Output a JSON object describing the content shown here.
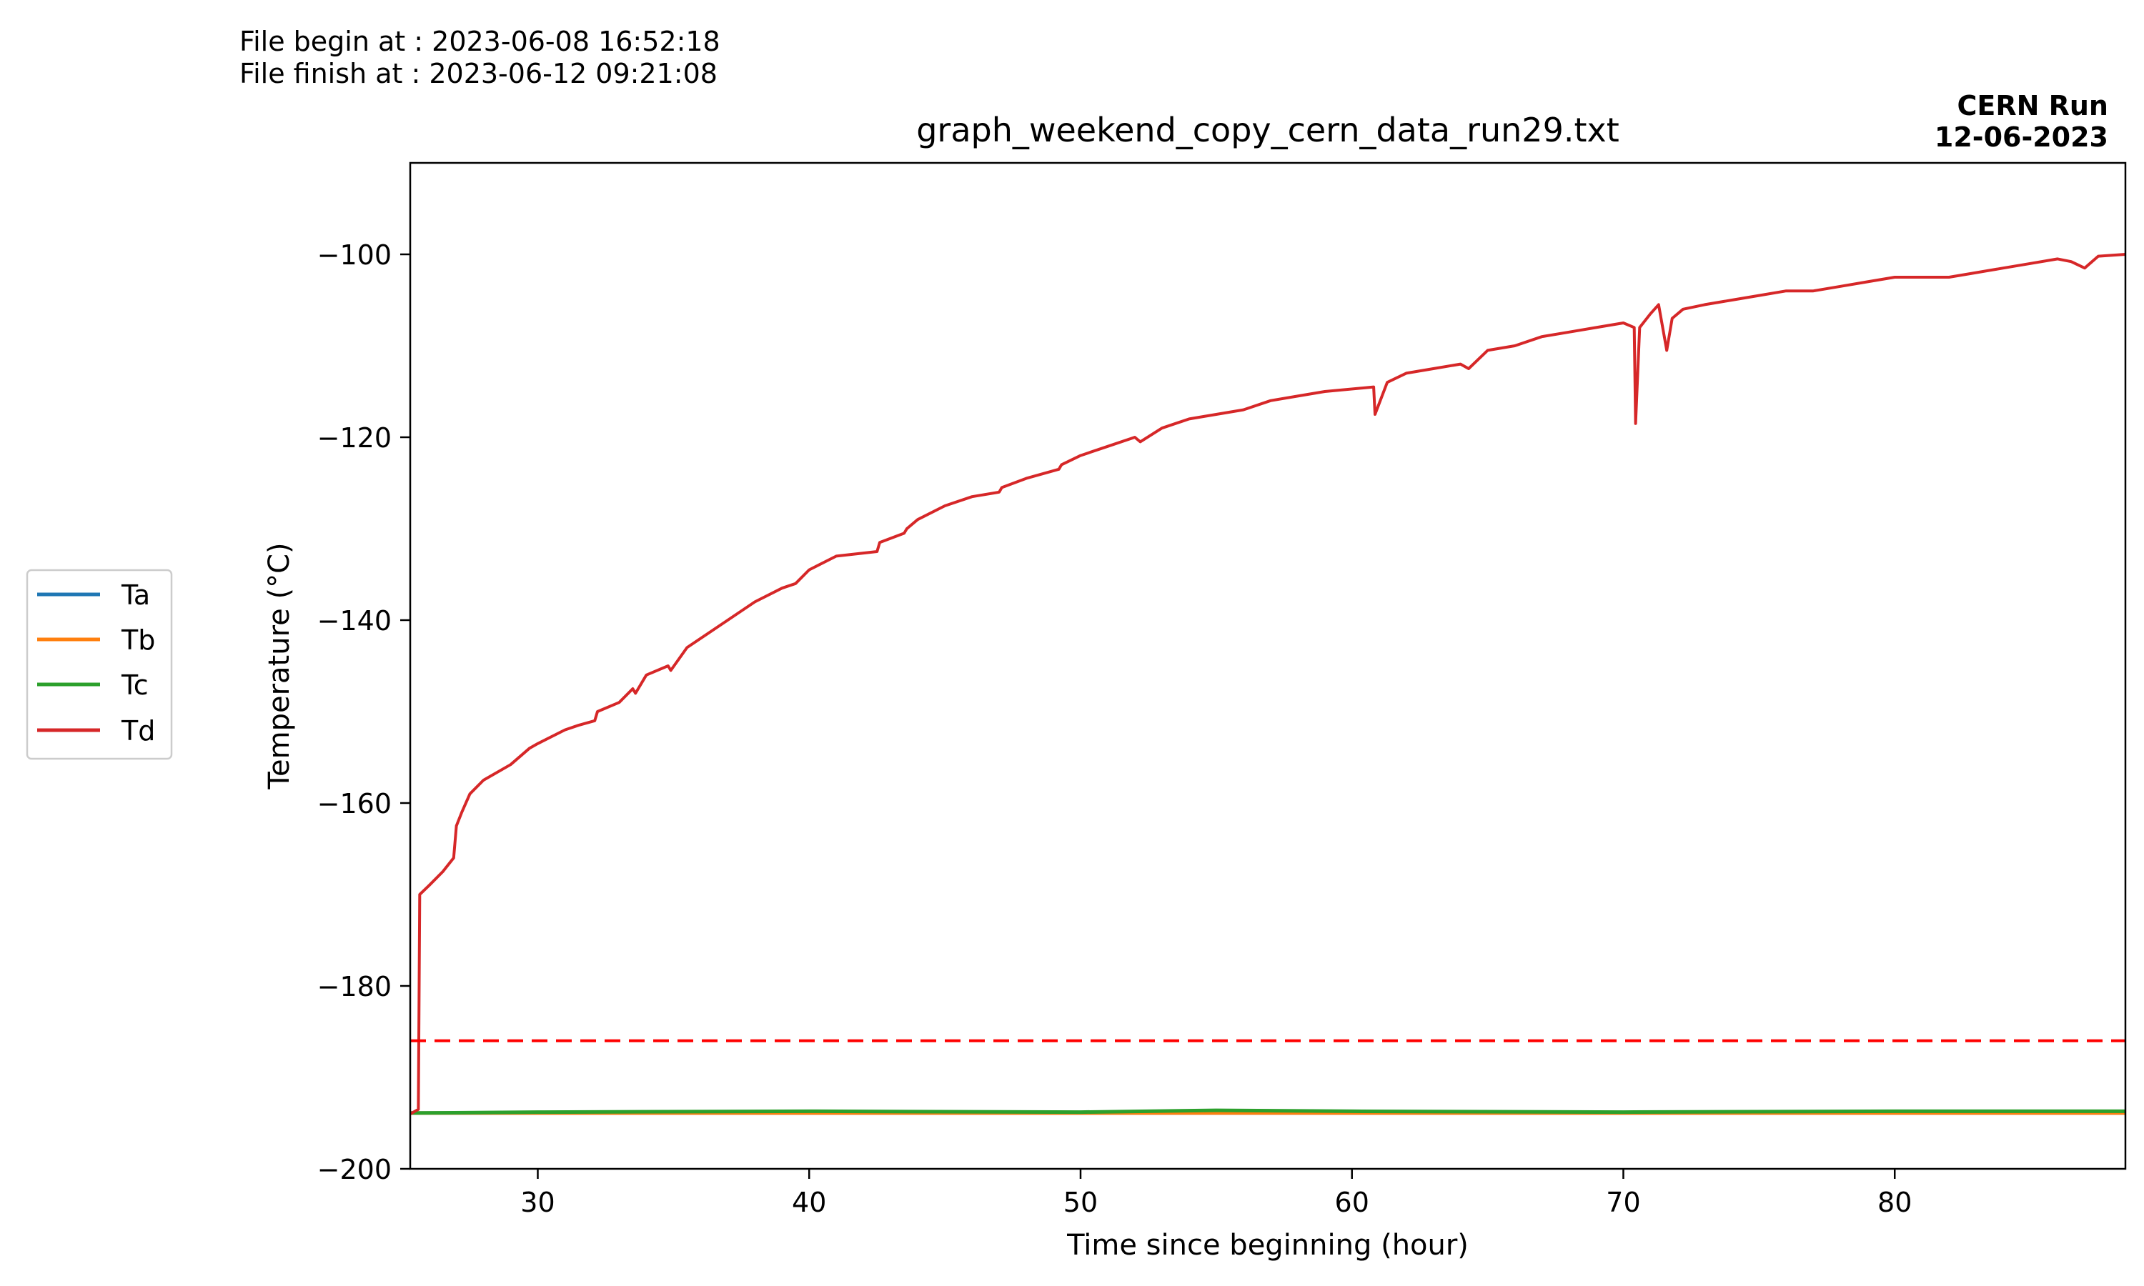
{
  "header": {
    "begin": "File begin at : 2023-06-08 16:52:18",
    "finish": "File finish at : 2023-06-12 09:21:08"
  },
  "stamp": {
    "line1": "CERN Run",
    "line2": "12-06-2023"
  },
  "colors": {
    "Ta": "#1f77b4",
    "Tb": "#ff7f0e",
    "Tc": "#2ca02c",
    "Td": "#d62728",
    "threshold": "#ff0000"
  },
  "chart_data": {
    "type": "line",
    "title": "graph_weekend_copy_cern_data_run29.txt",
    "xlabel": "Time since beginning (hour)",
    "ylabel": "Temperature (°C)",
    "xlim": [
      25.3,
      88.5
    ],
    "ylim": [
      -200,
      -90
    ],
    "xticks": [
      30,
      40,
      50,
      60,
      70,
      80
    ],
    "yticks": [
      -200,
      -180,
      -160,
      -140,
      -120,
      -100
    ],
    "legend": {
      "placement": "left-outside",
      "entries": [
        "Ta",
        "Tb",
        "Tc",
        "Td"
      ]
    },
    "threshold": {
      "y": -186,
      "style": "dashed"
    },
    "series": [
      {
        "name": "Ta",
        "x": [
          25.3,
          88.5
        ],
        "y": [
          -193.9,
          -193.9
        ]
      },
      {
        "name": "Tb",
        "x": [
          25.3,
          88.5
        ],
        "y": [
          -193.9,
          -193.9
        ]
      },
      {
        "name": "Tc",
        "x": [
          25.3,
          30,
          40,
          50,
          55,
          60,
          70,
          80,
          88.5
        ],
        "y": [
          -193.9,
          -193.8,
          -193.7,
          -193.8,
          -193.6,
          -193.7,
          -193.8,
          -193.7,
          -193.7
        ]
      },
      {
        "name": "Td",
        "x": [
          25.3,
          25.6,
          25.65,
          26.0,
          26.5,
          26.9,
          27.0,
          27.2,
          27.5,
          28,
          29,
          29.7,
          30,
          31,
          31.5,
          32.1,
          32.2,
          33,
          33.5,
          33.6,
          34,
          34.8,
          34.9,
          35.5,
          37,
          38,
          39,
          39.5,
          40,
          41,
          42.5,
          42.6,
          43.5,
          43.6,
          44,
          45,
          46,
          47,
          47.1,
          48,
          49.2,
          49.3,
          50,
          51,
          52,
          52.2,
          53,
          54,
          55,
          56,
          57,
          58,
          59,
          60.8,
          60.85,
          61.3,
          62,
          63,
          64,
          64.3,
          65,
          66,
          67,
          68,
          69,
          70,
          70.4,
          70.45,
          70.6,
          71,
          71.3,
          71.6,
          71.8,
          72.2,
          73,
          74,
          75,
          76,
          77,
          78,
          79,
          80,
          81,
          82,
          83,
          84,
          85,
          86,
          86.5,
          87,
          87.5,
          88.5
        ],
        "y": [
          -194,
          -193.5,
          -170,
          -169,
          -167.5,
          -166,
          -162.5,
          -161,
          -159,
          -157.5,
          -155.8,
          -154,
          -153.5,
          -152,
          -151.5,
          -151,
          -150,
          -149,
          -147.5,
          -148,
          -146,
          -145,
          -145.5,
          -143,
          -140,
          -138,
          -136.5,
          -136,
          -134.5,
          -133,
          -132.5,
          -131.5,
          -130.5,
          -130,
          -129,
          -127.5,
          -126.5,
          -126,
          -125.5,
          -124.5,
          -123.5,
          -123,
          -122,
          -121,
          -120,
          -120.5,
          -119,
          -118,
          -117.5,
          -117,
          -116,
          -115.5,
          -115,
          -114.5,
          -117.5,
          -114,
          -113,
          -112.5,
          -112,
          -112.5,
          -110.5,
          -110,
          -109,
          -108.5,
          -108,
          -107.5,
          -108,
          -118.5,
          -108,
          -106.5,
          -105.5,
          -110.5,
          -107,
          -106,
          -105.5,
          -105,
          -104.5,
          -104,
          -104,
          -103.5,
          -103,
          -102.5,
          -102.5,
          -102.5,
          -102,
          -101.5,
          -101,
          -100.5,
          -100.8,
          -101.5,
          -100.2,
          -100
        ]
      }
    ]
  }
}
